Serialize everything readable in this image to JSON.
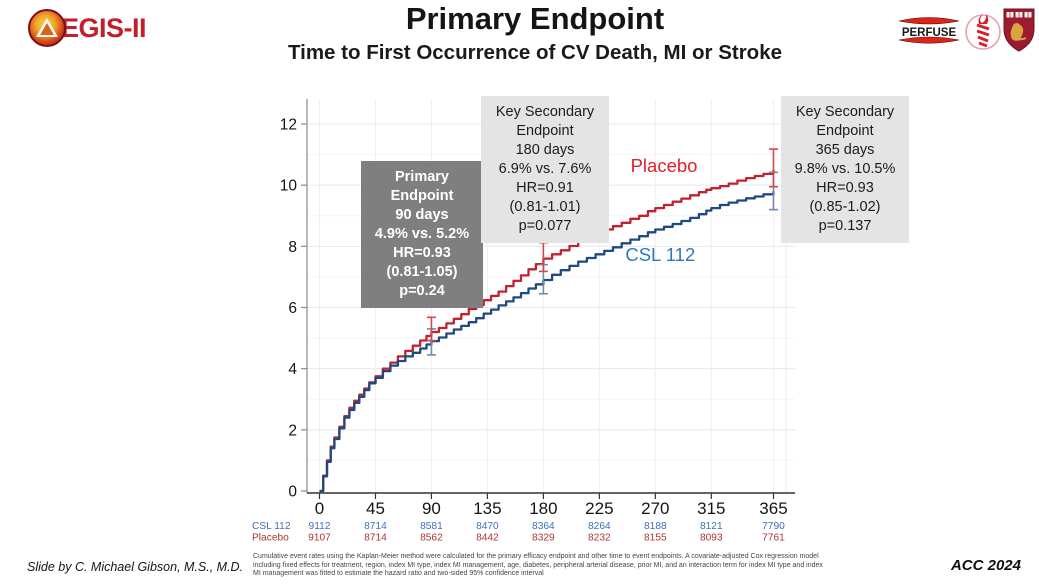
{
  "slide": {
    "title": "Primary Endpoint",
    "subtitle": "Time to First Occurrence of CV Death, MI or Stroke",
    "credit": "Slide by C. Michael Gibson, M.S., M.D.",
    "conference": "ACC 2024",
    "footnote": "Cumulative event rates using the Kaplan-Meier method were calculated for the primary efficacy endpoint and other time to event endpoints. A covariate-adjusted Cox regression model including fixed effects for treatment, region, index MI type, index MI management, age, diabetes, peripheral arterial disease, prior MI, and an interaction term for index MI type and index MI management was fitted to estimate the hazard ratio and two-sided 95% confidence interval"
  },
  "logos": {
    "aegis_text": "EGIS-II",
    "perfuse_text": "PERFUSE"
  },
  "annotations": {
    "primary": {
      "lines": [
        "Primary",
        "Endpoint",
        "90 days",
        "4.9% vs. 5.2%",
        "HR=0.93",
        "(0.81-1.05)",
        "p=0.24"
      ]
    },
    "sec180": {
      "lines": [
        "Key Secondary",
        "Endpoint",
        "180 days",
        "6.9% vs. 7.6%",
        "HR=0.91",
        "(0.81-1.01)",
        "p=0.077"
      ]
    },
    "sec365": {
      "lines": [
        "Key Secondary",
        "Endpoint",
        "365 days",
        "9.8% vs. 10.5%",
        "HR=0.93",
        "(0.85-1.02)",
        "p=0.137"
      ]
    }
  },
  "chart_data": {
    "type": "line",
    "subtype": "kaplan-meier-cumulative-incidence",
    "xlabel": "",
    "ylabel": "",
    "xlim": [
      0,
      365
    ],
    "ylim": [
      0,
      12
    ],
    "x_ticks": [
      0,
      45,
      90,
      135,
      180,
      225,
      270,
      315,
      365
    ],
    "y_ticks": [
      0,
      2,
      4,
      6,
      8,
      10,
      12
    ],
    "grid": "on",
    "colors": {
      "placebo_line": "#c22130",
      "placebo_label": "#e0202a",
      "csl_line": "#1f4a7d",
      "csl_label": "#2e78c0",
      "placebo_errbar": "#d9444b",
      "csl_errbar": "#7389ad",
      "grid_major": "#e8e8e8",
      "grid_minor": "#f5f5f5",
      "axis_x": "#333333",
      "axis_y": "#8a8a8a"
    },
    "series": [
      {
        "name": "Placebo",
        "label_pos": {
          "day": 277,
          "value": 10.62
        },
        "points": [
          [
            0,
            0
          ],
          [
            3,
            0.5
          ],
          [
            6,
            1.0
          ],
          [
            9,
            1.45
          ],
          [
            12,
            1.75
          ],
          [
            16,
            2.1
          ],
          [
            20,
            2.45
          ],
          [
            24,
            2.72
          ],
          [
            28,
            2.95
          ],
          [
            32,
            3.15
          ],
          [
            36,
            3.35
          ],
          [
            40,
            3.55
          ],
          [
            45,
            3.75
          ],
          [
            51,
            4.0
          ],
          [
            57,
            4.2
          ],
          [
            63,
            4.4
          ],
          [
            69,
            4.58
          ],
          [
            75,
            4.75
          ],
          [
            81,
            4.92
          ],
          [
            86,
            5.07
          ],
          [
            90,
            5.2
          ],
          [
            96,
            5.33
          ],
          [
            102,
            5.48
          ],
          [
            108,
            5.63
          ],
          [
            114,
            5.78
          ],
          [
            120,
            5.95
          ],
          [
            126,
            6.08
          ],
          [
            132,
            6.24
          ],
          [
            138,
            6.38
          ],
          [
            144,
            6.52
          ],
          [
            150,
            6.7
          ],
          [
            156,
            6.87
          ],
          [
            162,
            7.05
          ],
          [
            168,
            7.25
          ],
          [
            174,
            7.42
          ],
          [
            180,
            7.6
          ],
          [
            187,
            7.74
          ],
          [
            194,
            7.87
          ],
          [
            201,
            8.01
          ],
          [
            208,
            8.17
          ],
          [
            215,
            8.3
          ],
          [
            222,
            8.44
          ],
          [
            229,
            8.55
          ],
          [
            236,
            8.66
          ],
          [
            243,
            8.77
          ],
          [
            250,
            8.9
          ],
          [
            257,
            9.0
          ],
          [
            264,
            9.15
          ],
          [
            270,
            9.25
          ],
          [
            277,
            9.35
          ],
          [
            284,
            9.46
          ],
          [
            291,
            9.56
          ],
          [
            298,
            9.67
          ],
          [
            305,
            9.77
          ],
          [
            311,
            9.85
          ],
          [
            315,
            9.9
          ],
          [
            322,
            9.97
          ],
          [
            329,
            10.05
          ],
          [
            336,
            10.15
          ],
          [
            343,
            10.23
          ],
          [
            350,
            10.3
          ],
          [
            357,
            10.37
          ],
          [
            365,
            10.5
          ]
        ]
      },
      {
        "name": "CSL 112",
        "label_pos": {
          "day": 274,
          "value": 7.72
        },
        "points": [
          [
            0,
            0
          ],
          [
            3,
            0.48
          ],
          [
            6,
            0.95
          ],
          [
            9,
            1.4
          ],
          [
            12,
            1.7
          ],
          [
            16,
            2.05
          ],
          [
            20,
            2.4
          ],
          [
            24,
            2.65
          ],
          [
            28,
            2.88
          ],
          [
            32,
            3.08
          ],
          [
            36,
            3.3
          ],
          [
            40,
            3.52
          ],
          [
            45,
            3.7
          ],
          [
            51,
            3.92
          ],
          [
            57,
            4.1
          ],
          [
            63,
            4.25
          ],
          [
            69,
            4.4
          ],
          [
            75,
            4.52
          ],
          [
            81,
            4.66
          ],
          [
            86,
            4.79
          ],
          [
            90,
            4.9
          ],
          [
            96,
            5.02
          ],
          [
            102,
            5.15
          ],
          [
            108,
            5.28
          ],
          [
            114,
            5.4
          ],
          [
            120,
            5.52
          ],
          [
            126,
            5.65
          ],
          [
            132,
            5.8
          ],
          [
            138,
            5.93
          ],
          [
            144,
            6.07
          ],
          [
            150,
            6.2
          ],
          [
            156,
            6.33
          ],
          [
            162,
            6.47
          ],
          [
            168,
            6.62
          ],
          [
            174,
            6.76
          ],
          [
            180,
            6.9
          ],
          [
            187,
            7.07
          ],
          [
            194,
            7.22
          ],
          [
            201,
            7.36
          ],
          [
            208,
            7.5
          ],
          [
            215,
            7.62
          ],
          [
            222,
            7.74
          ],
          [
            229,
            7.85
          ],
          [
            236,
            7.97
          ],
          [
            243,
            8.1
          ],
          [
            250,
            8.22
          ],
          [
            257,
            8.33
          ],
          [
            264,
            8.46
          ],
          [
            270,
            8.55
          ],
          [
            277,
            8.64
          ],
          [
            284,
            8.73
          ],
          [
            291,
            8.83
          ],
          [
            298,
            8.93
          ],
          [
            305,
            9.05
          ],
          [
            311,
            9.17
          ],
          [
            315,
            9.25
          ],
          [
            322,
            9.35
          ],
          [
            329,
            9.43
          ],
          [
            336,
            9.5
          ],
          [
            343,
            9.57
          ],
          [
            350,
            9.63
          ],
          [
            357,
            9.7
          ],
          [
            365,
            9.8
          ]
        ]
      }
    ],
    "error_bars": [
      {
        "day": 90,
        "placebo": [
          4.92,
          5.68
        ],
        "csl112": [
          4.45,
          5.3
        ]
      },
      {
        "day": 180,
        "placebo": [
          7.18,
          8.12
        ],
        "csl112": [
          6.45,
          7.4
        ]
      },
      {
        "day": 365,
        "placebo": [
          9.95,
          11.18
        ],
        "csl112": [
          9.2,
          10.42
        ]
      }
    ],
    "risk_table": {
      "rows": [
        {
          "label": "CSL 112",
          "color": "#3f6fc1",
          "values": [
            "9112",
            "8714",
            "8581",
            "8470",
            "8364",
            "8264",
            "8188",
            "8121",
            "7790"
          ]
        },
        {
          "label": "Placebo",
          "color": "#b03431",
          "values": [
            "9107",
            "8714",
            "8562",
            "8442",
            "8329",
            "8232",
            "8155",
            "8093",
            "7761"
          ]
        }
      ]
    }
  }
}
